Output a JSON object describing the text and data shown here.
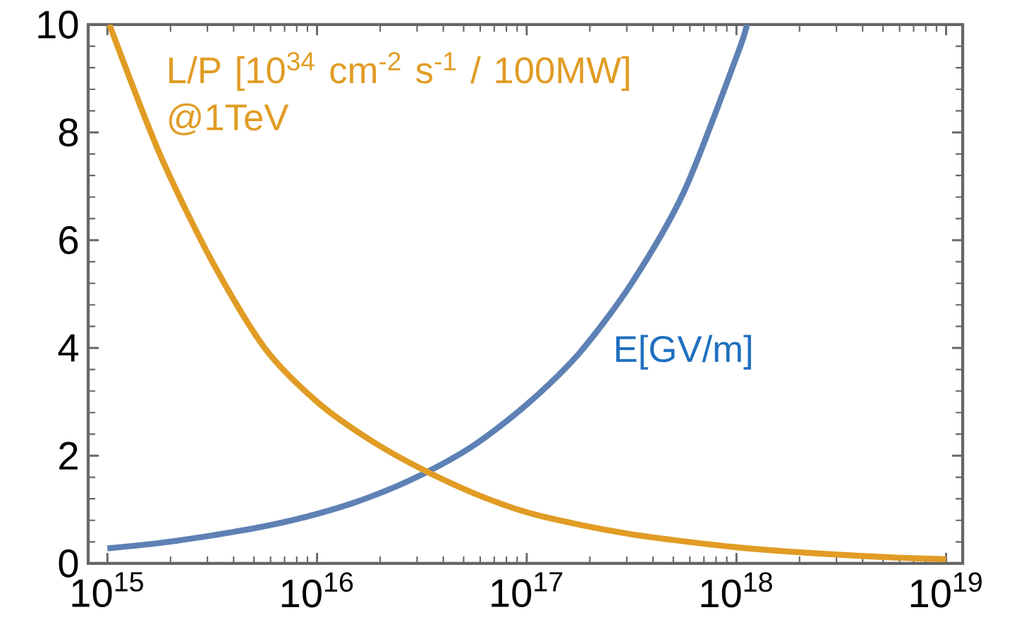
{
  "chart_data": {
    "type": "line",
    "log": "x",
    "xlim": [
      810000000000000.0,
      1.2e+19
    ],
    "ylim": [
      0,
      10
    ],
    "xticks": [
      {
        "value": 1000000000000000.0,
        "label": "10$^{15}$"
      },
      {
        "value": 1e+16,
        "label": "10$^{16}$"
      },
      {
        "value": 1e+17,
        "label": "10$^{17}$"
      },
      {
        "value": 1e+18,
        "label": "10$^{18}$"
      },
      {
        "value": 1e+19,
        "label": "10$^{19}$"
      }
    ],
    "yticks": [
      0,
      2,
      4,
      6,
      8,
      10
    ],
    "series": [
      {
        "name": "E[GV/m]",
        "color": "#5e81b5",
        "x": [
          1000000000000000.0,
          1778000000000000.0,
          3162000000000000.0,
          5623000000000000.0,
          1e+16,
          1.778e+16,
          3.162e+16,
          5.623e+16,
          1e+17,
          1.778e+17,
          3.162e+17,
          5.623e+17,
          1e+18,
          1.122e+18
        ],
        "values": [
          0.28,
          0.38,
          0.52,
          0.69,
          0.92,
          1.23,
          1.65,
          2.2,
          2.95,
          3.9,
          5.2,
          6.9,
          9.4,
          10
        ]
      },
      {
        "name": "L/P [10$^{34}$ cm$^{-2}$ s$^{-1}$ / 100MW] @1TeV",
        "color": "#e19c24",
        "x": [
          1023000000000000.0,
          1778000000000000.0,
          3162000000000000.0,
          5623000000000000.0,
          1e+16,
          1.778e+16,
          3.162e+16,
          5.623e+16,
          1e+17,
          1.778e+17,
          3.162e+17,
          5.623e+17,
          1e+18,
          1.778e+18,
          3.162e+18,
          5.623e+18,
          1e+19
        ],
        "values": [
          10,
          7.6,
          5.6,
          4.0,
          3.0,
          2.3,
          1.75,
          1.3,
          0.95,
          0.72,
          0.54,
          0.41,
          0.3,
          0.22,
          0.16,
          0.11,
          0.08
        ]
      }
    ]
  }
}
